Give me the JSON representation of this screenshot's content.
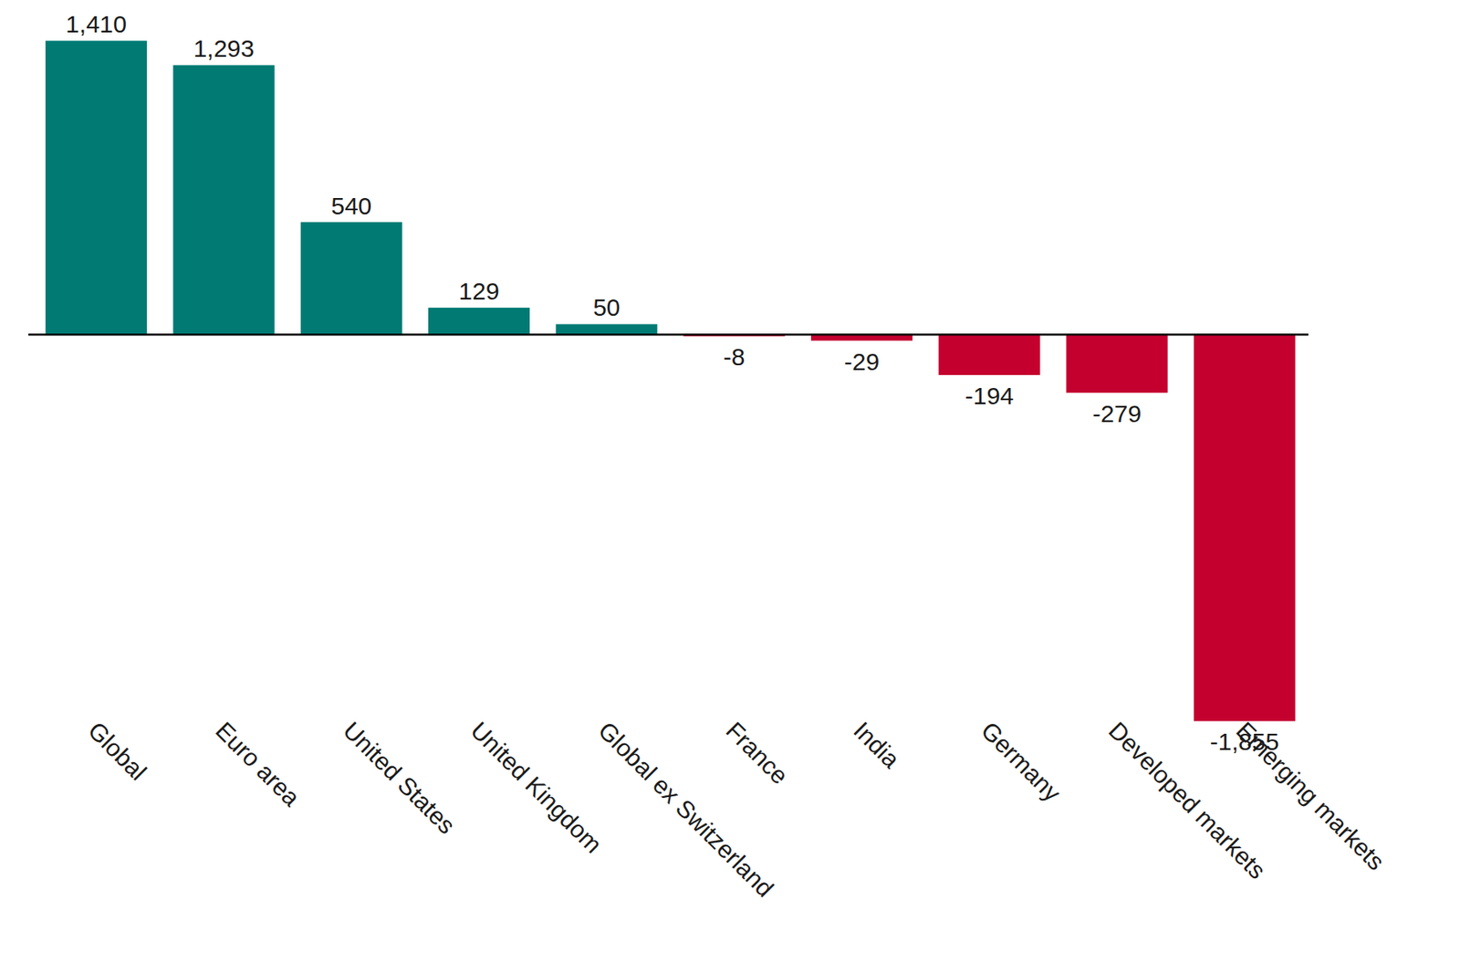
{
  "chart_data": {
    "type": "bar",
    "categories": [
      "Global",
      "Euro area",
      "United States",
      "United Kingdom",
      "Global ex Switzerland",
      "France",
      "India",
      "Germany",
      "Developed markets",
      "Emerging markets"
    ],
    "values": [
      1410,
      1293,
      540,
      129,
      50,
      -8,
      -29,
      -194,
      -279,
      -1855
    ],
    "value_labels": [
      "1,410",
      "1,293",
      "540",
      "129",
      "50",
      "-8",
      "-29",
      "-194",
      "-279",
      "-1,855"
    ],
    "colors": [
      "#007a73",
      "#007a73",
      "#007a73",
      "#007a73",
      "#007a73",
      "#c4002f",
      "#c4002f",
      "#c4002f",
      "#c4002f",
      "#c4002f"
    ],
    "ylim": [
      -1900,
      1450
    ],
    "data_labels": true,
    "tick_labels": "x",
    "grid": false
  }
}
